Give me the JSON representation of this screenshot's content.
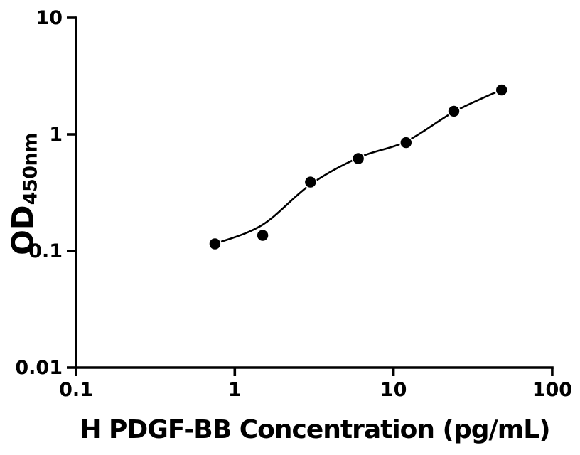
{
  "figure": {
    "background": "#ffffff",
    "foreground": "#000000"
  },
  "chart_data": {
    "type": "scatter",
    "title": "",
    "xlabel": "H PDGF-BB Concentration (pg/mL)",
    "ylabel": "OD450nm",
    "ylabel_main": "OD",
    "ylabel_sub": "450nm",
    "x_scale": "log",
    "y_scale": "log",
    "xlim": [
      0.1,
      100
    ],
    "ylim": [
      0.01,
      10
    ],
    "grid": false,
    "legend": false,
    "x_ticks": [
      {
        "value": 0.1,
        "label": "0.1"
      },
      {
        "value": 1,
        "label": "1"
      },
      {
        "value": 10,
        "label": "10"
      },
      {
        "value": 100,
        "label": "100"
      }
    ],
    "y_ticks": [
      {
        "value": 0.01,
        "label": "0.01"
      },
      {
        "value": 0.1,
        "label": "0.1"
      },
      {
        "value": 1,
        "label": "1"
      },
      {
        "value": 10,
        "label": "10"
      }
    ],
    "points": [
      {
        "conc": 0.75,
        "od": 0.115
      },
      {
        "conc": 1.5,
        "od": 0.136
      },
      {
        "conc": 3,
        "od": 0.39
      },
      {
        "conc": 6,
        "od": 0.62
      },
      {
        "conc": 12,
        "od": 0.85
      },
      {
        "conc": 24,
        "od": 1.58
      },
      {
        "conc": 48,
        "od": 2.4
      }
    ],
    "fit_curve": [
      {
        "conc": 0.78,
        "od": 0.117
      },
      {
        "conc": 1.5,
        "od": 0.168
      },
      {
        "conc": 3,
        "od": 0.372
      },
      {
        "conc": 6,
        "od": 0.63
      },
      {
        "conc": 12,
        "od": 0.87
      },
      {
        "conc": 24,
        "od": 1.56
      },
      {
        "conc": 48,
        "od": 2.42
      }
    ],
    "colors": {
      "axis": "#000000",
      "marker_fill": "#000000",
      "marker_edge": "#ffffff",
      "curve": "#000000"
    }
  }
}
